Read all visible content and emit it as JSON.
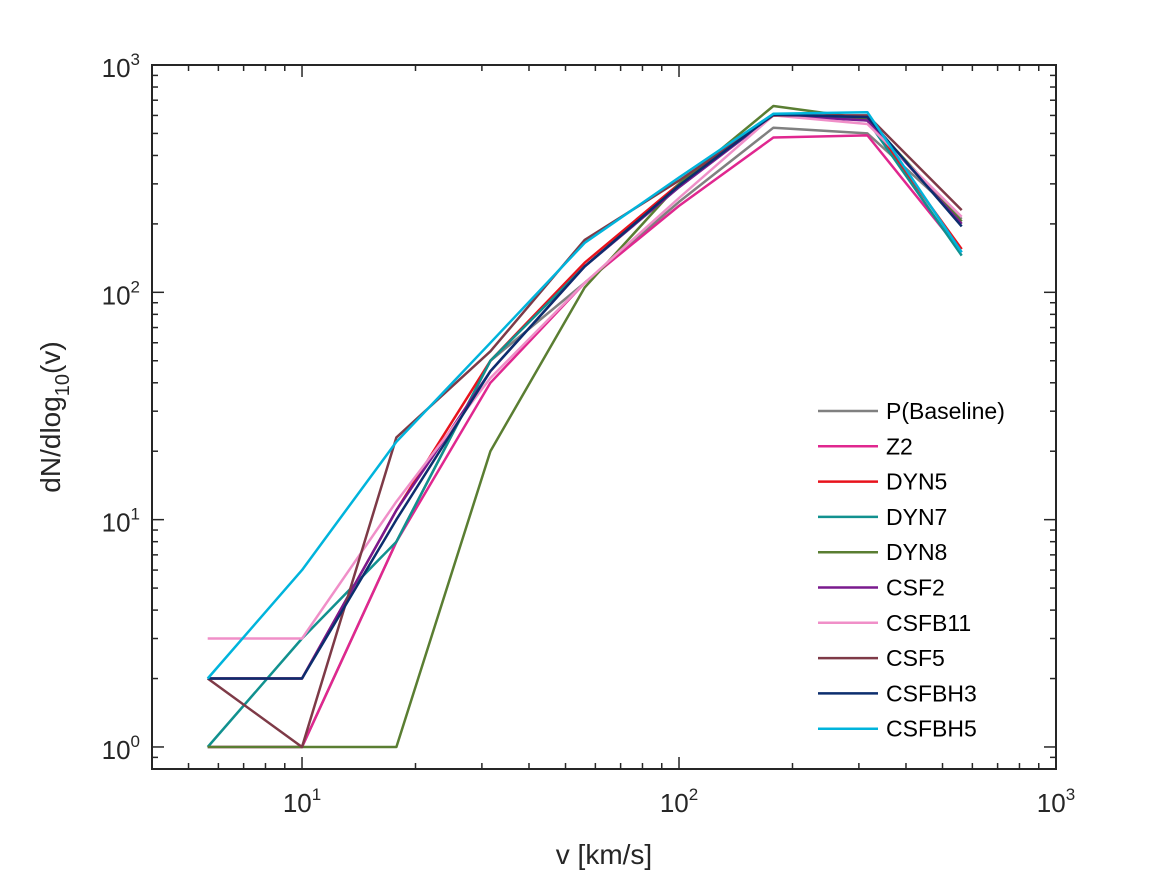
{
  "chart_data": {
    "type": "line",
    "xscale": "log",
    "yscale": "log",
    "xlim": [
      4,
      1000
    ],
    "ylim": [
      0.8,
      1000
    ],
    "xlabel": "v [km/s]",
    "ylabel_main": "dN/dlog",
    "ylabel_sub": "10",
    "ylabel_tail": "(v)",
    "xticks": [
      {
        "base": "10",
        "exp": "1"
      },
      {
        "base": "10",
        "exp": "2"
      },
      {
        "base": "10",
        "exp": "3"
      }
    ],
    "yticks": [
      {
        "base": "10",
        "exp": "0"
      },
      {
        "base": "10",
        "exp": "1"
      },
      {
        "base": "10",
        "exp": "2"
      },
      {
        "base": "10",
        "exp": "3"
      }
    ],
    "legend_position": "lower-right",
    "x": [
      5.62,
      10,
      17.8,
      31.6,
      56.2,
      100,
      178,
      316,
      562
    ],
    "series": [
      {
        "name": "P(Baseline)",
        "color": "#808080",
        "values": [
          1,
          1,
          8,
          50,
          110,
          250,
          530,
          500,
          210
        ]
      },
      {
        "name": "Z2",
        "color": "#e0278f",
        "values": [
          1,
          1,
          8,
          40,
          110,
          240,
          480,
          490,
          150
        ]
      },
      {
        "name": "DYN5",
        "color": "#e8131c",
        "values": [
          2,
          2,
          11,
          50,
          135,
          300,
          600,
          580,
          155
        ]
      },
      {
        "name": "DYN7",
        "color": "#11918f",
        "values": [
          1,
          3,
          8,
          50,
          130,
          290,
          610,
          570,
          145
        ]
      },
      {
        "name": "DYN8",
        "color": "#5a7e32",
        "values": [
          1,
          1,
          1,
          20,
          105,
          300,
          660,
          580,
          205
        ]
      },
      {
        "name": "CSF2",
        "color": "#7a1a8e",
        "values": [
          2,
          2,
          11,
          45,
          130,
          290,
          600,
          570,
          200
        ]
      },
      {
        "name": "CSFB11",
        "color": "#f08fc8",
        "values": [
          3,
          3,
          12,
          42,
          110,
          260,
          600,
          550,
          215
        ]
      },
      {
        "name": "CSF5",
        "color": "#7e3a47",
        "values": [
          2,
          1,
          23,
          55,
          170,
          310,
          600,
          600,
          230
        ]
      },
      {
        "name": "CSFBH3",
        "color": "#0c2e6e",
        "values": [
          2,
          2,
          10,
          45,
          130,
          295,
          605,
          590,
          195
        ]
      },
      {
        "name": "CSFBH5",
        "color": "#00b4dc",
        "values": [
          2,
          6,
          22,
          60,
          165,
          320,
          610,
          620,
          150
        ]
      }
    ]
  }
}
